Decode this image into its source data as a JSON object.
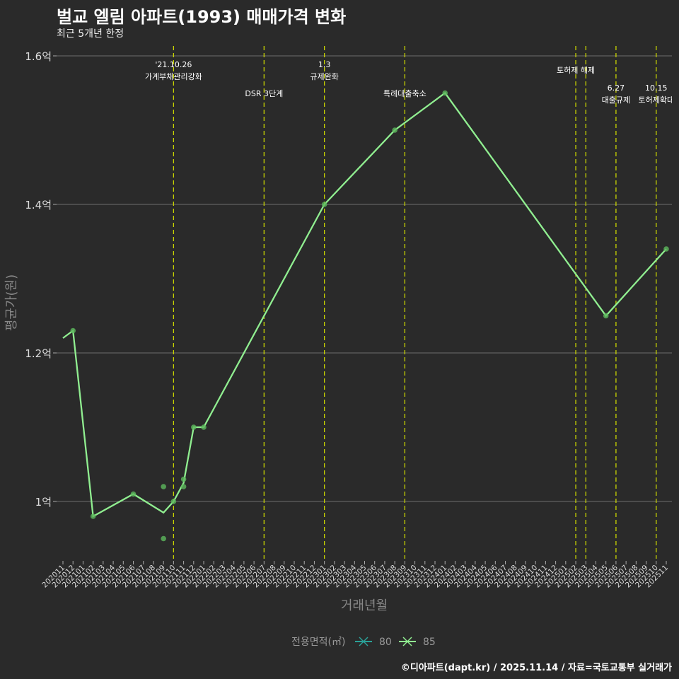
{
  "title": "벌교 엘림 아파트(1993) 매매가격 변화",
  "subtitle": "최근 5개년 한정",
  "caption": "©디아파트(dapt.kr) / 2025.11.14 / 자료=국토교통부 실거래가",
  "colors": {
    "bg": "#2a2a2a",
    "series80": "#2aa198",
    "series85": "#90ee90",
    "vline": "#c8d400",
    "grid": "#6e6e6e"
  },
  "chart_data": {
    "type": "line",
    "title": "벌교 엘림 아파트(1993) 매매가격 변화",
    "xlabel": "거래년월",
    "ylabel": "평균가(원)",
    "ylim": [
      0.92,
      1.61
    ],
    "yticks": [
      {
        "value": 1.0,
        "label": "1억"
      },
      {
        "value": 1.2,
        "label": "1.2억"
      },
      {
        "value": 1.4,
        "label": "1.4억"
      },
      {
        "value": 1.6,
        "label": "1.6억"
      }
    ],
    "categories": [
      "202011",
      "202012",
      "202101",
      "202102",
      "202103",
      "202104",
      "202105",
      "202106",
      "202107",
      "202108",
      "202109",
      "202110",
      "202111",
      "202112",
      "202201",
      "202202",
      "202203",
      "202204",
      "202205",
      "202206",
      "202207",
      "202208",
      "202209",
      "202210",
      "202211",
      "202212",
      "202301",
      "202302",
      "202303",
      "202304",
      "202305",
      "202306",
      "202307",
      "202308",
      "202309",
      "202310",
      "202311",
      "202312",
      "202401",
      "202402",
      "202403",
      "202404",
      "202405",
      "202406",
      "202407",
      "202408",
      "202409",
      "202410",
      "202411",
      "202412",
      "202501",
      "202502",
      "202503",
      "202504",
      "202505",
      "202506",
      "202507",
      "202508",
      "202509",
      "202510",
      "202511"
    ],
    "legend": {
      "title": "전용면적(㎡)",
      "position": "bottom",
      "items": [
        {
          "name": "80",
          "color": "#2aa198"
        },
        {
          "name": "85",
          "color": "#90ee90"
        }
      ]
    },
    "series": [
      {
        "name": "85",
        "line": [
          [
            "202011",
            1.22
          ],
          [
            "202012",
            1.23
          ],
          [
            "202102",
            0.98
          ],
          [
            "202106",
            1.01
          ],
          [
            "202109",
            0.985
          ],
          [
            "202110",
            1.0
          ],
          [
            "202111",
            1.025
          ],
          [
            "202112",
            1.1
          ],
          [
            "202201",
            1.1
          ],
          [
            "202301",
            1.4
          ],
          [
            "202308",
            1.5
          ],
          [
            "202401",
            1.55
          ],
          [
            "202505",
            1.25
          ],
          [
            "202511",
            1.34
          ]
        ],
        "points": [
          [
            "202012",
            1.23
          ],
          [
            "202102",
            0.98
          ],
          [
            "202106",
            1.01
          ],
          [
            "202109",
            1.02
          ],
          [
            "202109",
            0.95
          ],
          [
            "202110",
            1.0
          ],
          [
            "202111",
            1.03
          ],
          [
            "202111",
            1.02
          ],
          [
            "202112",
            1.1
          ],
          [
            "202201",
            1.1
          ],
          [
            "202301",
            1.4
          ],
          [
            "202308",
            1.5
          ],
          [
            "202401",
            1.55
          ],
          [
            "202505",
            1.25
          ],
          [
            "202511",
            1.34
          ]
        ]
      }
    ],
    "events": [
      {
        "month": "202110",
        "lines": [
          "'21.10.26",
          "가계부채관리강화"
        ],
        "row": "top"
      },
      {
        "month": "202207",
        "lines": [
          "DSR 3단계"
        ],
        "row": "low"
      },
      {
        "month": "202301",
        "lines": [
          "1.3",
          "규제완화"
        ],
        "row": "top"
      },
      {
        "month": "202309",
        "lines": [
          "특례대출축소"
        ],
        "row": "low"
      },
      {
        "month": "202502",
        "lines": [
          "토허제 해제"
        ],
        "row": "mid"
      },
      {
        "month": "202503",
        "lines": [],
        "row": "mid"
      },
      {
        "month": "202506",
        "lines": [
          "6.27",
          "대출규제"
        ],
        "row": "low2"
      },
      {
        "month": "202510",
        "lines": [
          "10.15",
          "토허제확대"
        ],
        "row": "low2"
      }
    ]
  }
}
